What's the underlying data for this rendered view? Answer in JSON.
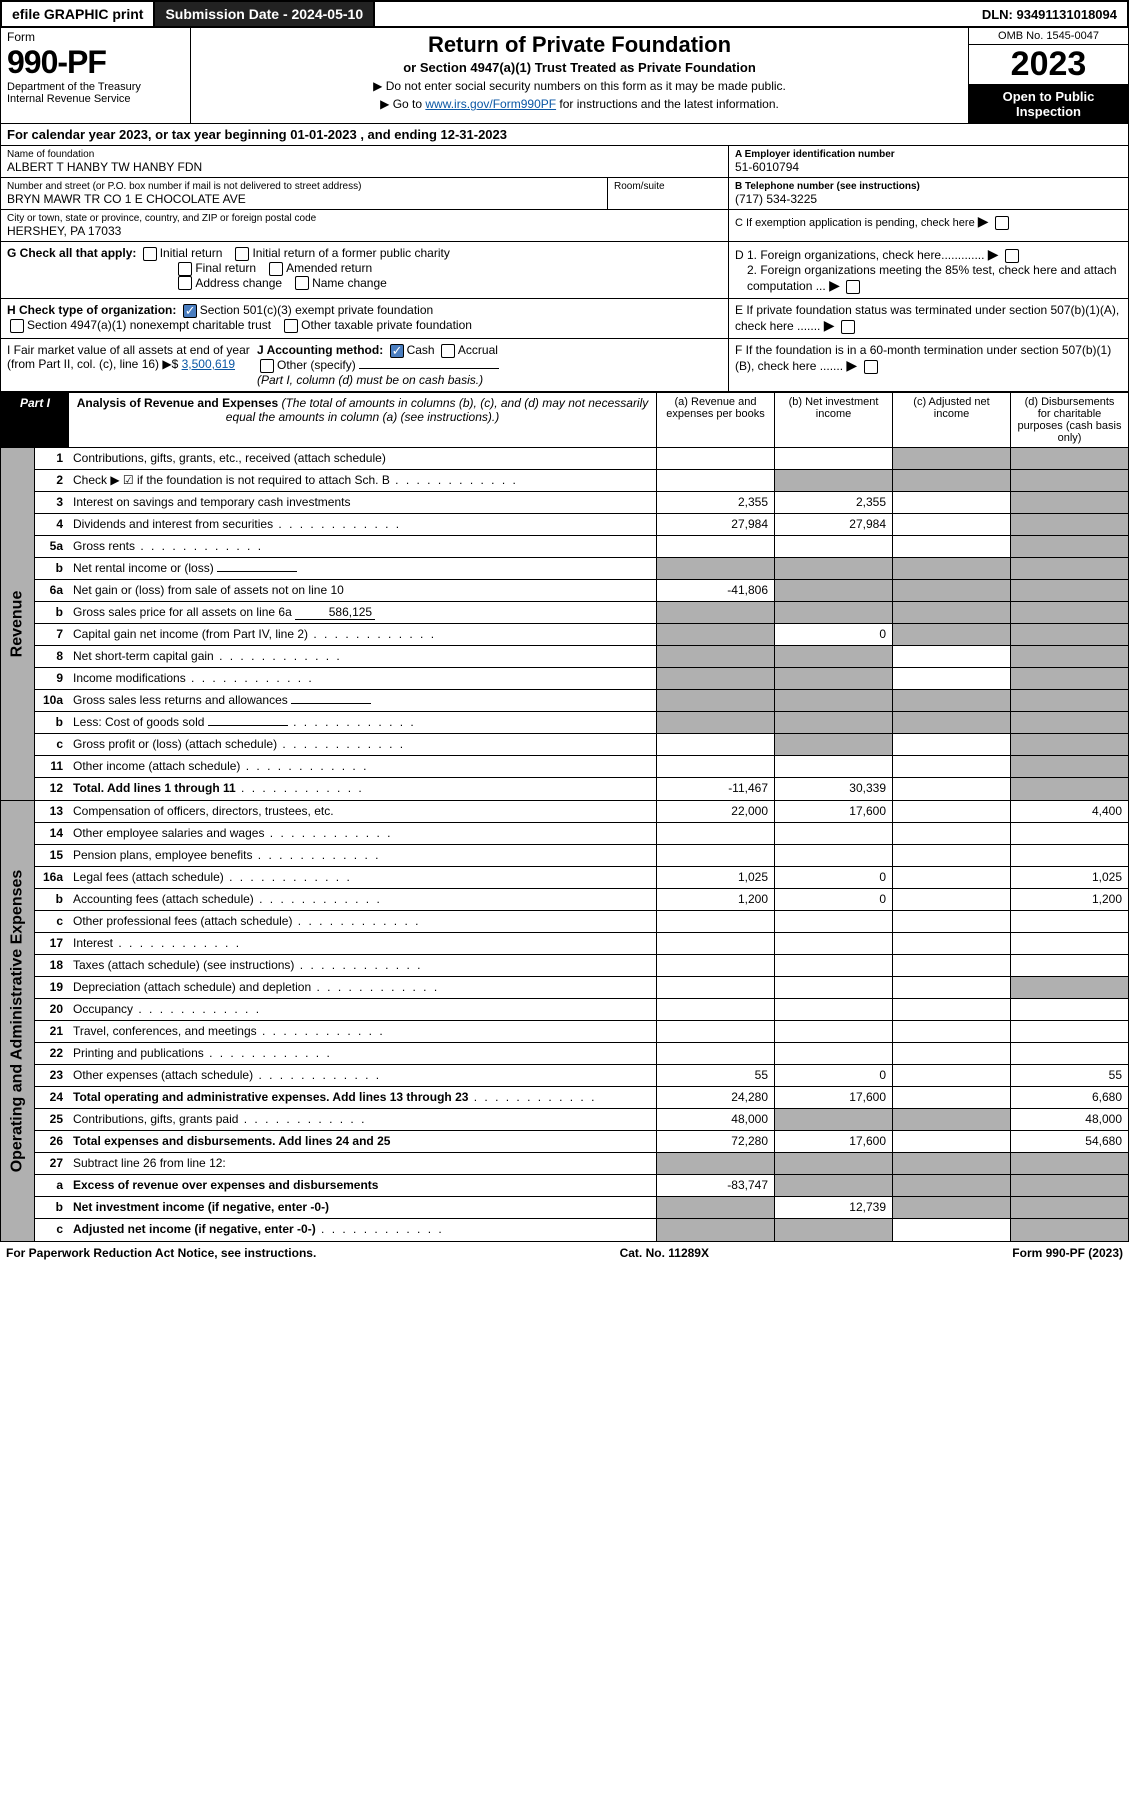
{
  "topbar": {
    "efile": "efile GRAPHIC print",
    "submission": "Submission Date - 2024-05-10",
    "dln": "DLN: 93491131018094"
  },
  "header": {
    "form_label": "Form",
    "form_no": "990-PF",
    "dept": "Department of the Treasury",
    "irs": "Internal Revenue Service",
    "title": "Return of Private Foundation",
    "subtitle": "or Section 4947(a)(1) Trust Treated as Private Foundation",
    "instr1": "▶ Do not enter social security numbers on this form as it may be made public.",
    "instr2_pre": "▶ Go to ",
    "instr2_link": "www.irs.gov/Form990PF",
    "instr2_post": " for instructions and the latest information.",
    "omb": "OMB No. 1545-0047",
    "year": "2023",
    "open": "Open to Public Inspection"
  },
  "cal": "For calendar year 2023, or tax year beginning 01-01-2023            , and ending 12-31-2023",
  "entity": {
    "name_lbl": "Name of foundation",
    "name": "ALBERT T HANBY TW HANBY FDN",
    "addr_lbl": "Number and street (or P.O. box number if mail is not delivered to street address)",
    "addr": "BRYN MAWR TR CO 1 E CHOCOLATE AVE",
    "room_lbl": "Room/suite",
    "city_lbl": "City or town, state or province, country, and ZIP or foreign postal code",
    "city": "HERSHEY, PA  17033",
    "ein_lbl": "A Employer identification number",
    "ein": "51-6010794",
    "tel_lbl": "B Telephone number (see instructions)",
    "tel": "(717) 534-3225",
    "c": "C If exemption application is pending, check here",
    "d1": "D 1. Foreign organizations, check here.............",
    "d2": "2. Foreign organizations meeting the 85% test, check here and attach computation ...",
    "e": "E If private foundation status was terminated under section 507(b)(1)(A), check here .......",
    "f": "F If the foundation is in a 60-month termination under section 507(b)(1)(B), check here .......",
    "g_lbl": "G Check all that apply:",
    "g_opts": [
      "Initial return",
      "Initial return of a former public charity",
      "Final return",
      "Amended return",
      "Address change",
      "Name change"
    ],
    "h_lbl": "H Check type of organization:",
    "h_501": "Section 501(c)(3) exempt private foundation",
    "h_4947": "Section 4947(a)(1) nonexempt charitable trust",
    "h_other": "Other taxable private foundation",
    "i_lbl": "I Fair market value of all assets at end of year (from Part II, col. (c), line 16) ▶$",
    "i_val": "3,500,619",
    "j_lbl": "J Accounting method:",
    "j_cash": "Cash",
    "j_accrual": "Accrual",
    "j_other": "Other (specify)",
    "j_note": "(Part I, column (d) must be on cash basis.)"
  },
  "part1": {
    "tab": "Part I",
    "title": "Analysis of Revenue and Expenses",
    "title_note": " (The total of amounts in columns (b), (c), and (d) may not necessarily equal the amounts in column (a) (see instructions).)",
    "col_a": "(a) Revenue and expenses per books",
    "col_b": "(b) Net investment income",
    "col_c": "(c) Adjusted net income",
    "col_d": "(d) Disbursements for charitable purposes (cash basis only)"
  },
  "sections": {
    "revenue": "Revenue",
    "opex": "Operating and Administrative Expenses"
  },
  "rows": [
    {
      "n": "1",
      "d": "Contributions, gifts, grants, etc., received (attach schedule)",
      "a": "",
      "b": "",
      "c": "g",
      "dd": "g"
    },
    {
      "n": "2",
      "d": "Check ▶ ☑ if the foundation is not required to attach Sch. B",
      "dots": true,
      "a": "",
      "b": "g",
      "c": "g",
      "dd": "g"
    },
    {
      "n": "3",
      "d": "Interest on savings and temporary cash investments",
      "a": "2,355",
      "b": "2,355",
      "c": "",
      "dd": "g"
    },
    {
      "n": "4",
      "d": "Dividends and interest from securities",
      "dots": true,
      "a": "27,984",
      "b": "27,984",
      "c": "",
      "dd": "g"
    },
    {
      "n": "5a",
      "d": "Gross rents",
      "dots": true,
      "a": "",
      "b": "",
      "c": "",
      "dd": "g"
    },
    {
      "n": "b",
      "d": "Net rental income or (loss)",
      "a": "g",
      "b": "g",
      "c": "g",
      "dd": "g",
      "inline": ""
    },
    {
      "n": "6a",
      "d": "Net gain or (loss) from sale of assets not on line 10",
      "a": "-41,806",
      "b": "g",
      "c": "g",
      "dd": "g"
    },
    {
      "n": "b",
      "d": "Gross sales price for all assets on line 6a",
      "a": "g",
      "b": "g",
      "c": "g",
      "dd": "g",
      "inline": "586,125"
    },
    {
      "n": "7",
      "d": "Capital gain net income (from Part IV, line 2)",
      "dots": true,
      "a": "g",
      "b": "0",
      "c": "g",
      "dd": "g"
    },
    {
      "n": "8",
      "d": "Net short-term capital gain",
      "dots": true,
      "a": "g",
      "b": "g",
      "c": "",
      "dd": "g"
    },
    {
      "n": "9",
      "d": "Income modifications",
      "dots": true,
      "a": "g",
      "b": "g",
      "c": "",
      "dd": "g"
    },
    {
      "n": "10a",
      "d": "Gross sales less returns and allowances",
      "a": "g",
      "b": "g",
      "c": "g",
      "dd": "g",
      "inline": ""
    },
    {
      "n": "b",
      "d": "Less: Cost of goods sold",
      "dots": true,
      "a": "g",
      "b": "g",
      "c": "g",
      "dd": "g",
      "inline": ""
    },
    {
      "n": "c",
      "d": "Gross profit or (loss) (attach schedule)",
      "dots": true,
      "a": "",
      "b": "g",
      "c": "",
      "dd": "g"
    },
    {
      "n": "11",
      "d": "Other income (attach schedule)",
      "dots": true,
      "a": "",
      "b": "",
      "c": "",
      "dd": "g"
    },
    {
      "n": "12",
      "d": "Total. Add lines 1 through 11",
      "dots": true,
      "bold": true,
      "a": "-11,467",
      "b": "30,339",
      "c": "",
      "dd": "g"
    }
  ],
  "opex_rows": [
    {
      "n": "13",
      "d": "Compensation of officers, directors, trustees, etc.",
      "a": "22,000",
      "b": "17,600",
      "c": "",
      "dd": "4,400"
    },
    {
      "n": "14",
      "d": "Other employee salaries and wages",
      "dots": true,
      "a": "",
      "b": "",
      "c": "",
      "dd": ""
    },
    {
      "n": "15",
      "d": "Pension plans, employee benefits",
      "dots": true,
      "a": "",
      "b": "",
      "c": "",
      "dd": ""
    },
    {
      "n": "16a",
      "d": "Legal fees (attach schedule)",
      "dots": true,
      "a": "1,025",
      "b": "0",
      "c": "",
      "dd": "1,025"
    },
    {
      "n": "b",
      "d": "Accounting fees (attach schedule)",
      "dots": true,
      "a": "1,200",
      "b": "0",
      "c": "",
      "dd": "1,200"
    },
    {
      "n": "c",
      "d": "Other professional fees (attach schedule)",
      "dots": true,
      "a": "",
      "b": "",
      "c": "",
      "dd": ""
    },
    {
      "n": "17",
      "d": "Interest",
      "dots": true,
      "a": "",
      "b": "",
      "c": "",
      "dd": ""
    },
    {
      "n": "18",
      "d": "Taxes (attach schedule) (see instructions)",
      "dots": true,
      "a": "",
      "b": "",
      "c": "",
      "dd": ""
    },
    {
      "n": "19",
      "d": "Depreciation (attach schedule) and depletion",
      "dots": true,
      "a": "",
      "b": "",
      "c": "",
      "dd": "g"
    },
    {
      "n": "20",
      "d": "Occupancy",
      "dots": true,
      "a": "",
      "b": "",
      "c": "",
      "dd": ""
    },
    {
      "n": "21",
      "d": "Travel, conferences, and meetings",
      "dots": true,
      "a": "",
      "b": "",
      "c": "",
      "dd": ""
    },
    {
      "n": "22",
      "d": "Printing and publications",
      "dots": true,
      "a": "",
      "b": "",
      "c": "",
      "dd": ""
    },
    {
      "n": "23",
      "d": "Other expenses (attach schedule)",
      "dots": true,
      "a": "55",
      "b": "0",
      "c": "",
      "dd": "55"
    },
    {
      "n": "24",
      "d": "Total operating and administrative expenses. Add lines 13 through 23",
      "dots": true,
      "bold": true,
      "a": "24,280",
      "b": "17,600",
      "c": "",
      "dd": "6,680"
    },
    {
      "n": "25",
      "d": "Contributions, gifts, grants paid",
      "dots": true,
      "a": "48,000",
      "b": "g",
      "c": "g",
      "dd": "48,000"
    },
    {
      "n": "26",
      "d": "Total expenses and disbursements. Add lines 24 and 25",
      "bold": true,
      "a": "72,280",
      "b": "17,600",
      "c": "",
      "dd": "54,680"
    },
    {
      "n": "27",
      "d": "Subtract line 26 from line 12:",
      "a": "g",
      "b": "g",
      "c": "g",
      "dd": "g"
    },
    {
      "n": "a",
      "d": "Excess of revenue over expenses and disbursements",
      "bold": true,
      "a": "-83,747",
      "b": "g",
      "c": "g",
      "dd": "g"
    },
    {
      "n": "b",
      "d": "Net investment income (if negative, enter -0-)",
      "bold": true,
      "a": "g",
      "b": "12,739",
      "c": "g",
      "dd": "g"
    },
    {
      "n": "c",
      "d": "Adjusted net income (if negative, enter -0-)",
      "bold": true,
      "dots": true,
      "a": "g",
      "b": "g",
      "c": "",
      "dd": "g"
    }
  ],
  "footer": {
    "pra": "For Paperwork Reduction Act Notice, see instructions.",
    "cat": "Cat. No. 11289X",
    "form": "Form 990-PF (2023)"
  }
}
